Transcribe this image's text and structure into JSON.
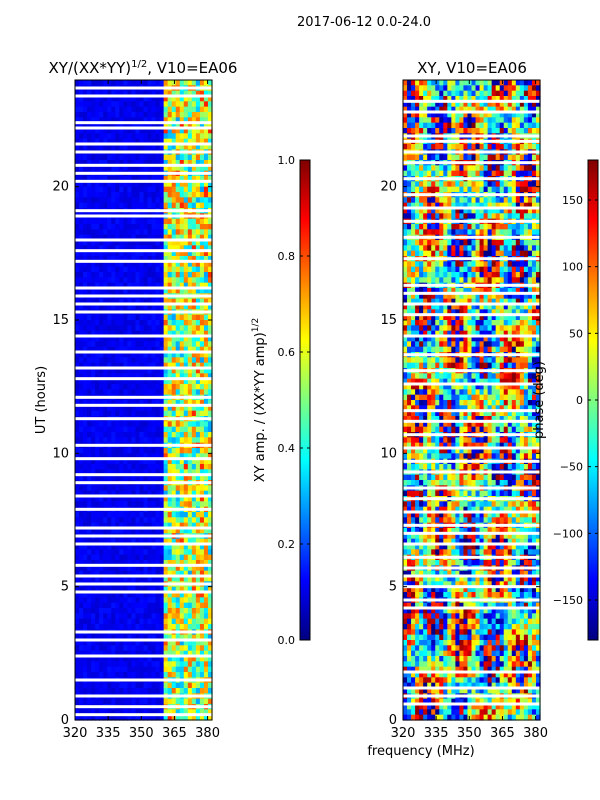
{
  "figure": {
    "suptitle": "2017-06-12 0.0-24.0",
    "shared_xlabel": "frequency (MHz)"
  },
  "chart_data": [
    {
      "type": "heatmap",
      "title": "XY/(XX*YY)",
      "title_sup": "1/2",
      "title_suffix": ", V10=EA06",
      "xlabel": "",
      "ylabel": "UT (hours)",
      "xlim": [
        320,
        382
      ],
      "ylim": [
        0,
        24
      ],
      "xticks": [
        320,
        335,
        350,
        365,
        380
      ],
      "yticks": [
        0,
        5,
        10,
        15,
        20
      ],
      "colormap": "jet",
      "colorbar": {
        "label": "XY amp. / (XX*YY amp)",
        "label_sup": "1/2",
        "vmin": 0.0,
        "vmax": 1.0,
        "ticks": [
          "0.0",
          "0.2",
          "0.4",
          "0.6",
          "0.8",
          "1.0"
        ]
      },
      "hot_band_mhz": [
        360,
        382
      ],
      "flagged_utc_hours": [
        23.7,
        23.4,
        22.4,
        22.2,
        21.6,
        21.3,
        20.8,
        20.5,
        20.2,
        19.1,
        18.9,
        18.0,
        17.6,
        17.2,
        16.2,
        15.9,
        15.6,
        15.3,
        14.4,
        13.8,
        13.2,
        12.8,
        12.1,
        11.8,
        11.3,
        10.3,
        9.8,
        9.2,
        8.9,
        8.4,
        7.9,
        7.2,
        6.9,
        6.6,
        5.8,
        5.4,
        5.1,
        4.8,
        3.3,
        3.0,
        2.4,
        1.5,
        0.9,
        0.5,
        0.2
      ]
    },
    {
      "type": "heatmap",
      "title": "XY, V10=EA06",
      "xlabel": "",
      "ylabel": "",
      "xlim": [
        320,
        382
      ],
      "ylim": [
        0,
        24
      ],
      "xticks": [
        320,
        335,
        350,
        365,
        380
      ],
      "yticks": [
        0,
        5,
        10,
        15,
        20
      ],
      "colormap": "jet",
      "colorbar": {
        "label": "phase (deg)",
        "vmin": -180,
        "vmax": 180,
        "ticks": [
          "−150",
          "−100",
          "−50",
          "0",
          "50",
          "100",
          "150"
        ]
      },
      "flagged_utc_hours": [
        23.2,
        22.8,
        21.9,
        21.7,
        21.3,
        20.9,
        20.3,
        19.7,
        19.2,
        18.7,
        18.1,
        17.3,
        16.3,
        16.0,
        15.6,
        15.2,
        14.4,
        13.7,
        13.1,
        12.6,
        11.6,
        11.2,
        10.7,
        10.2,
        9.7,
        9.3,
        8.7,
        8.3,
        7.8,
        7.3,
        7.0,
        6.6,
        6.1,
        5.7,
        5.4,
        5.0,
        4.5,
        4.2,
        1.8,
        1.2,
        0.9,
        0.6
      ]
    }
  ]
}
